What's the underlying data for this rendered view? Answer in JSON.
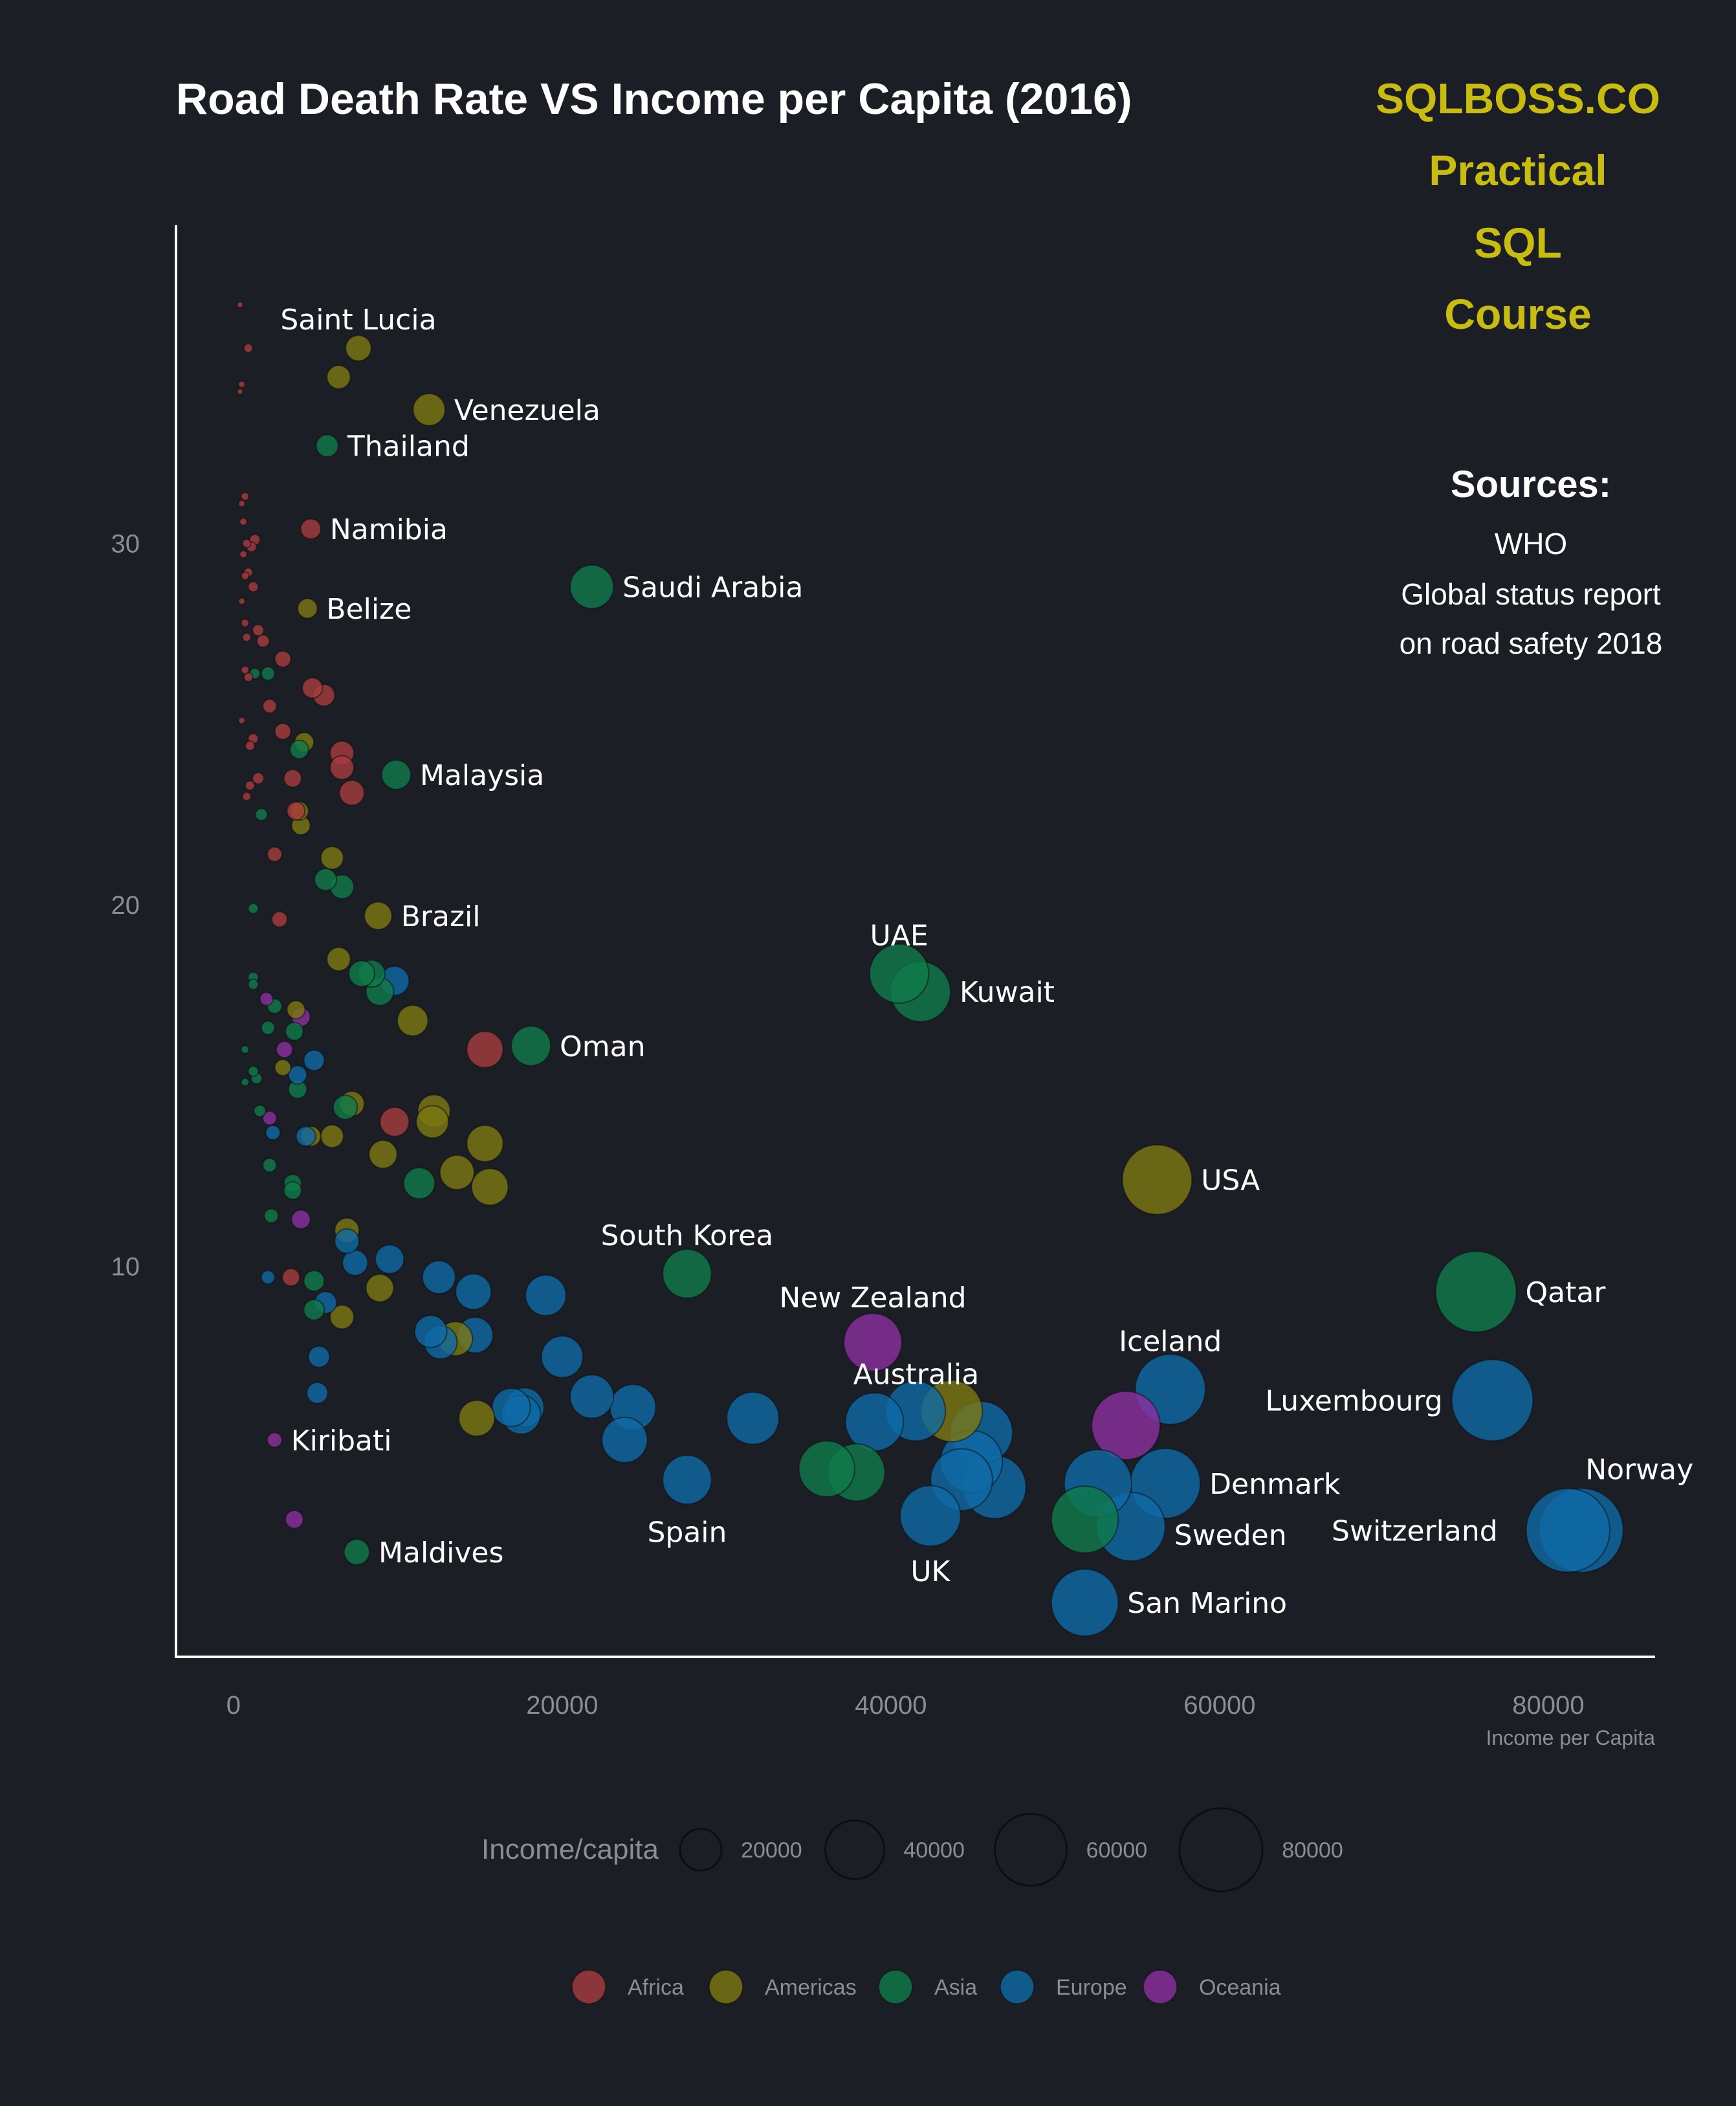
{
  "colors": {
    "background": "#1b1e25",
    "Africa": "#a83c3e",
    "Americas": "#7d7812",
    "Asia": "#0f7b4a",
    "Europe": "#0f6aa6",
    "Oceania": "#8c2fa0",
    "brand": "#c9bc10"
  },
  "header": {
    "brand_lines": [
      "SQLBOSS.CO",
      "Practical",
      "SQL",
      "Course"
    ],
    "sources_heading": "Sources:",
    "sources_lines": [
      "WHO",
      "Global status report",
      "on road safety 2018"
    ]
  },
  "chart_data": {
    "type": "scatter",
    "title": "Road Death Rate VS Income per Capita (2016)",
    "xlabel": "Income per Capita",
    "ylabel": "",
    "xlim": [
      -3500,
      86500
    ],
    "ylim": [
      -0.8,
      38.8
    ],
    "x_ticks": [
      0,
      20000,
      40000,
      60000,
      80000
    ],
    "y_ticks": [
      10,
      20,
      30
    ],
    "grid": false,
    "size_legend": {
      "title": "Income/capita",
      "values": [
        20000,
        40000,
        60000,
        80000
      ]
    },
    "color_legend": {
      "entries": [
        "Africa",
        "Americas",
        "Asia",
        "Europe",
        "Oceania"
      ],
      "placement": "bottom"
    },
    "points": [
      {
        "name": "Saint Lucia",
        "region": "Americas",
        "x": 7600,
        "y": 35.4,
        "label": true
      },
      {
        "name": "",
        "region": "Americas",
        "x": 6400,
        "y": 34.6
      },
      {
        "name": "Venezuela",
        "region": "Americas",
        "x": 11900,
        "y": 33.7,
        "label": true
      },
      {
        "name": "Thailand",
        "region": "Asia",
        "x": 5700,
        "y": 32.7,
        "label": true
      },
      {
        "name": "Namibia",
        "region": "Africa",
        "x": 4700,
        "y": 30.4,
        "label": true
      },
      {
        "name": "Saudi Arabia",
        "region": "Asia",
        "x": 21800,
        "y": 28.8,
        "label": true
      },
      {
        "name": "Belize",
        "region": "Americas",
        "x": 4500,
        "y": 28.2,
        "label": true
      },
      {
        "name": "Malaysia",
        "region": "Asia",
        "x": 9900,
        "y": 23.6,
        "label": true
      },
      {
        "name": "Brazil",
        "region": "Americas",
        "x": 8800,
        "y": 19.7,
        "label": true
      },
      {
        "name": "UAE",
        "region": "Asia",
        "x": 40500,
        "y": 18.1,
        "label": true
      },
      {
        "name": "Kuwait",
        "region": "Asia",
        "x": 41800,
        "y": 17.6,
        "label": true
      },
      {
        "name": "Oman",
        "region": "Asia",
        "x": 18100,
        "y": 16.1,
        "label": true
      },
      {
        "name": "USA",
        "region": "Americas",
        "x": 56200,
        "y": 12.4,
        "label": true
      },
      {
        "name": "South Korea",
        "region": "Asia",
        "x": 27600,
        "y": 9.8,
        "label": true
      },
      {
        "name": "Qatar",
        "region": "Asia",
        "x": 75600,
        "y": 9.3,
        "label": true
      },
      {
        "name": "New Zealand",
        "region": "Oceania",
        "x": 38900,
        "y": 7.9,
        "label": true
      },
      {
        "name": "Iceland",
        "region": "Europe",
        "x": 57000,
        "y": 6.6,
        "label": true
      },
      {
        "name": "Australia",
        "region": "Oceania",
        "x": 54300,
        "y": 5.6,
        "label": true
      },
      {
        "name": "Luxembourg",
        "region": "Europe",
        "x": 76600,
        "y": 6.3,
        "label": true
      },
      {
        "name": "Denmark",
        "region": "Europe",
        "x": 56700,
        "y": 4.0,
        "label": true
      },
      {
        "name": "Norway",
        "region": "Europe",
        "x": 82000,
        "y": 2.7,
        "label": true
      },
      {
        "name": "Switzerland",
        "region": "Europe",
        "x": 81200,
        "y": 2.7,
        "label": true
      },
      {
        "name": "Sweden",
        "region": "Europe",
        "x": 54600,
        "y": 2.8,
        "label": true
      },
      {
        "name": "Spain",
        "region": "Europe",
        "x": 27600,
        "y": 4.1,
        "label": true
      },
      {
        "name": "UK",
        "region": "Europe",
        "x": 42400,
        "y": 3.1,
        "label": true
      },
      {
        "name": "San Marino",
        "region": "Europe",
        "x": 51800,
        "y": 0.7,
        "label": true
      },
      {
        "name": "Kiribati",
        "region": "Oceania",
        "x": 2500,
        "y": 5.2,
        "label": true
      },
      {
        "name": "Maldives",
        "region": "Asia",
        "x": 7500,
        "y": 2.1,
        "label": true
      },
      {
        "name": "",
        "region": "Africa",
        "x": 400,
        "y": 36.6
      },
      {
        "name": "",
        "region": "Africa",
        "x": 900,
        "y": 35.4
      },
      {
        "name": "",
        "region": "Africa",
        "x": 500,
        "y": 34.4
      },
      {
        "name": "",
        "region": "Africa",
        "x": 400,
        "y": 34.2
      },
      {
        "name": "",
        "region": "Africa",
        "x": 700,
        "y": 31.3
      },
      {
        "name": "",
        "region": "Africa",
        "x": 500,
        "y": 31.1
      },
      {
        "name": "",
        "region": "Africa",
        "x": 600,
        "y": 30.6
      },
      {
        "name": "",
        "region": "Africa",
        "x": 1300,
        "y": 30.1
      },
      {
        "name": "",
        "region": "Africa",
        "x": 800,
        "y": 30.0
      },
      {
        "name": "",
        "region": "Africa",
        "x": 1100,
        "y": 29.9
      },
      {
        "name": "",
        "region": "Africa",
        "x": 600,
        "y": 29.7
      },
      {
        "name": "",
        "region": "Africa",
        "x": 900,
        "y": 29.2
      },
      {
        "name": "",
        "region": "Africa",
        "x": 700,
        "y": 29.1
      },
      {
        "name": "",
        "region": "Africa",
        "x": 1200,
        "y": 28.8
      },
      {
        "name": "",
        "region": "Africa",
        "x": 500,
        "y": 28.4
      },
      {
        "name": "",
        "region": "Africa",
        "x": 700,
        "y": 27.8
      },
      {
        "name": "",
        "region": "Africa",
        "x": 1500,
        "y": 27.6
      },
      {
        "name": "",
        "region": "Africa",
        "x": 800,
        "y": 27.4
      },
      {
        "name": "",
        "region": "Africa",
        "x": 1800,
        "y": 27.3
      },
      {
        "name": "",
        "region": "Africa",
        "x": 3000,
        "y": 26.8
      },
      {
        "name": "",
        "region": "Africa",
        "x": 700,
        "y": 26.5
      },
      {
        "name": "",
        "region": "Africa",
        "x": 900,
        "y": 26.3
      },
      {
        "name": "",
        "region": "Africa",
        "x": 4800,
        "y": 26.0
      },
      {
        "name": "",
        "region": "Africa",
        "x": 5500,
        "y": 25.8
      },
      {
        "name": "",
        "region": "Africa",
        "x": 2200,
        "y": 25.5
      },
      {
        "name": "",
        "region": "Africa",
        "x": 500,
        "y": 25.1
      },
      {
        "name": "",
        "region": "Africa",
        "x": 3000,
        "y": 24.8
      },
      {
        "name": "",
        "region": "Africa",
        "x": 1200,
        "y": 24.6
      },
      {
        "name": "",
        "region": "Africa",
        "x": 1000,
        "y": 24.4
      },
      {
        "name": "",
        "region": "Africa",
        "x": 6600,
        "y": 24.2
      },
      {
        "name": "",
        "region": "Africa",
        "x": 6600,
        "y": 23.8
      },
      {
        "name": "",
        "region": "Africa",
        "x": 3600,
        "y": 23.5
      },
      {
        "name": "",
        "region": "Africa",
        "x": 1500,
        "y": 23.5
      },
      {
        "name": "",
        "region": "Africa",
        "x": 1000,
        "y": 23.3
      },
      {
        "name": "",
        "region": "Africa",
        "x": 7200,
        "y": 23.1
      },
      {
        "name": "",
        "region": "Africa",
        "x": 800,
        "y": 23.0
      },
      {
        "name": "",
        "region": "Africa",
        "x": 3800,
        "y": 22.6
      },
      {
        "name": "",
        "region": "Africa",
        "x": 2500,
        "y": 21.4
      },
      {
        "name": "",
        "region": "Africa",
        "x": 2800,
        "y": 19.6
      },
      {
        "name": "",
        "region": "Africa",
        "x": 15300,
        "y": 16.0
      },
      {
        "name": "",
        "region": "Africa",
        "x": 9800,
        "y": 14.0
      },
      {
        "name": "",
        "region": "Africa",
        "x": 3500,
        "y": 9.7
      },
      {
        "name": "",
        "region": "Americas",
        "x": 4000,
        "y": 22.6
      },
      {
        "name": "",
        "region": "Americas",
        "x": 4100,
        "y": 22.2
      },
      {
        "name": "",
        "region": "Americas",
        "x": 4300,
        "y": 24.5
      },
      {
        "name": "",
        "region": "Americas",
        "x": 6000,
        "y": 21.3
      },
      {
        "name": "",
        "region": "Americas",
        "x": 6400,
        "y": 18.5
      },
      {
        "name": "",
        "region": "Americas",
        "x": 10900,
        "y": 16.8
      },
      {
        "name": "",
        "region": "Americas",
        "x": 3800,
        "y": 17.1
      },
      {
        "name": "",
        "region": "Americas",
        "x": 3000,
        "y": 15.5
      },
      {
        "name": "",
        "region": "Americas",
        "x": 7200,
        "y": 14.5
      },
      {
        "name": "",
        "region": "Americas",
        "x": 12200,
        "y": 14.3
      },
      {
        "name": "",
        "region": "Americas",
        "x": 12100,
        "y": 14.0
      },
      {
        "name": "",
        "region": "Americas",
        "x": 15300,
        "y": 13.4
      },
      {
        "name": "",
        "region": "Americas",
        "x": 6000,
        "y": 13.6
      },
      {
        "name": "",
        "region": "Americas",
        "x": 4700,
        "y": 13.6
      },
      {
        "name": "",
        "region": "Americas",
        "x": 9100,
        "y": 13.1
      },
      {
        "name": "",
        "region": "Americas",
        "x": 13600,
        "y": 12.6
      },
      {
        "name": "",
        "region": "Americas",
        "x": 15600,
        "y": 12.2
      },
      {
        "name": "",
        "region": "Americas",
        "x": 6900,
        "y": 11.0
      },
      {
        "name": "",
        "region": "Americas",
        "x": 8900,
        "y": 9.4
      },
      {
        "name": "",
        "region": "Americas",
        "x": 6600,
        "y": 8.6
      },
      {
        "name": "",
        "region": "Americas",
        "x": 13500,
        "y": 8.0
      },
      {
        "name": "",
        "region": "Americas",
        "x": 14800,
        "y": 5.8
      },
      {
        "name": "",
        "region": "Americas",
        "x": 43700,
        "y": 6.0
      },
      {
        "name": "",
        "region": "Asia",
        "x": 1300,
        "y": 26.4
      },
      {
        "name": "",
        "region": "Asia",
        "x": 2100,
        "y": 26.4
      },
      {
        "name": "",
        "region": "Asia",
        "x": 4000,
        "y": 24.3
      },
      {
        "name": "",
        "region": "Asia",
        "x": 1700,
        "y": 22.5
      },
      {
        "name": "",
        "region": "Asia",
        "x": 5600,
        "y": 20.7
      },
      {
        "name": "",
        "region": "Asia",
        "x": 6600,
        "y": 20.5
      },
      {
        "name": "",
        "region": "Asia",
        "x": 1200,
        "y": 19.9
      },
      {
        "name": "",
        "region": "Asia",
        "x": 7800,
        "y": 18.1
      },
      {
        "name": "",
        "region": "Asia",
        "x": 8400,
        "y": 18.1
      },
      {
        "name": "",
        "region": "Asia",
        "x": 8900,
        "y": 17.6
      },
      {
        "name": "",
        "region": "Asia",
        "x": 1200,
        "y": 18.0
      },
      {
        "name": "",
        "region": "Asia",
        "x": 1200,
        "y": 17.8
      },
      {
        "name": "",
        "region": "Asia",
        "x": 2500,
        "y": 17.2
      },
      {
        "name": "",
        "region": "Asia",
        "x": 2100,
        "y": 16.6
      },
      {
        "name": "",
        "region": "Asia",
        "x": 3700,
        "y": 16.5
      },
      {
        "name": "",
        "region": "Asia",
        "x": 700,
        "y": 16.0
      },
      {
        "name": "",
        "region": "Asia",
        "x": 1200,
        "y": 15.4
      },
      {
        "name": "",
        "region": "Asia",
        "x": 1400,
        "y": 15.2
      },
      {
        "name": "",
        "region": "Asia",
        "x": 700,
        "y": 15.1
      },
      {
        "name": "",
        "region": "Asia",
        "x": 3900,
        "y": 14.9
      },
      {
        "name": "",
        "region": "Asia",
        "x": 6800,
        "y": 14.4
      },
      {
        "name": "",
        "region": "Asia",
        "x": 1600,
        "y": 14.3
      },
      {
        "name": "",
        "region": "Asia",
        "x": 2200,
        "y": 12.8
      },
      {
        "name": "",
        "region": "Asia",
        "x": 3600,
        "y": 12.3
      },
      {
        "name": "",
        "region": "Asia",
        "x": 3600,
        "y": 12.1
      },
      {
        "name": "",
        "region": "Asia",
        "x": 11300,
        "y": 12.3
      },
      {
        "name": "",
        "region": "Asia",
        "x": 2300,
        "y": 11.4
      },
      {
        "name": "",
        "region": "Asia",
        "x": 4900,
        "y": 9.6
      },
      {
        "name": "",
        "region": "Asia",
        "x": 4900,
        "y": 8.8
      },
      {
        "name": "",
        "region": "Asia",
        "x": 36100,
        "y": 4.4
      },
      {
        "name": "",
        "region": "Asia",
        "x": 37900,
        "y": 4.3
      },
      {
        "name": "",
        "region": "Asia",
        "x": 51800,
        "y": 3.0
      },
      {
        "name": "",
        "region": "Europe",
        "x": 9800,
        "y": 17.9
      },
      {
        "name": "",
        "region": "Europe",
        "x": 4900,
        "y": 15.7
      },
      {
        "name": "",
        "region": "Europe",
        "x": 3900,
        "y": 15.3
      },
      {
        "name": "",
        "region": "Europe",
        "x": 2400,
        "y": 13.7
      },
      {
        "name": "",
        "region": "Europe",
        "x": 4400,
        "y": 13.6
      },
      {
        "name": "",
        "region": "Europe",
        "x": 6900,
        "y": 10.7
      },
      {
        "name": "",
        "region": "Europe",
        "x": 7400,
        "y": 10.1
      },
      {
        "name": "",
        "region": "Europe",
        "x": 9500,
        "y": 10.2
      },
      {
        "name": "",
        "region": "Europe",
        "x": 12500,
        "y": 9.7
      },
      {
        "name": "",
        "region": "Europe",
        "x": 14600,
        "y": 9.3
      },
      {
        "name": "",
        "region": "Europe",
        "x": 19000,
        "y": 9.2
      },
      {
        "name": "",
        "region": "Europe",
        "x": 2100,
        "y": 9.7
      },
      {
        "name": "",
        "region": "Europe",
        "x": 5600,
        "y": 9.0
      },
      {
        "name": "",
        "region": "Europe",
        "x": 12000,
        "y": 8.2
      },
      {
        "name": "",
        "region": "Europe",
        "x": 12600,
        "y": 7.9
      },
      {
        "name": "",
        "region": "Europe",
        "x": 14700,
        "y": 8.1
      },
      {
        "name": "",
        "region": "Europe",
        "x": 20000,
        "y": 7.5
      },
      {
        "name": "",
        "region": "Europe",
        "x": 5200,
        "y": 7.5
      },
      {
        "name": "",
        "region": "Europe",
        "x": 5100,
        "y": 6.5
      },
      {
        "name": "",
        "region": "Europe",
        "x": 16900,
        "y": 6.1
      },
      {
        "name": "",
        "region": "Europe",
        "x": 17500,
        "y": 5.9
      },
      {
        "name": "",
        "region": "Europe",
        "x": 17700,
        "y": 6.1
      },
      {
        "name": "",
        "region": "Europe",
        "x": 21800,
        "y": 6.4
      },
      {
        "name": "",
        "region": "Europe",
        "x": 24300,
        "y": 6.1
      },
      {
        "name": "",
        "region": "Europe",
        "x": 23800,
        "y": 5.2
      },
      {
        "name": "",
        "region": "Europe",
        "x": 31600,
        "y": 5.8
      },
      {
        "name": "",
        "region": "Europe",
        "x": 39000,
        "y": 5.7
      },
      {
        "name": "",
        "region": "Europe",
        "x": 41500,
        "y": 6.0
      },
      {
        "name": "",
        "region": "Europe",
        "x": 45500,
        "y": 5.4
      },
      {
        "name": "",
        "region": "Europe",
        "x": 44900,
        "y": 4.6
      },
      {
        "name": "",
        "region": "Europe",
        "x": 44300,
        "y": 4.1
      },
      {
        "name": "",
        "region": "Europe",
        "x": 46300,
        "y": 3.9
      },
      {
        "name": "",
        "region": "Europe",
        "x": 52600,
        "y": 4.0
      },
      {
        "name": "",
        "region": "Oceania",
        "x": 2000,
        "y": 17.4
      },
      {
        "name": "",
        "region": "Oceania",
        "x": 4100,
        "y": 16.9
      },
      {
        "name": "",
        "region": "Oceania",
        "x": 3100,
        "y": 16.0
      },
      {
        "name": "",
        "region": "Oceania",
        "x": 2200,
        "y": 14.1
      },
      {
        "name": "",
        "region": "Oceania",
        "x": 4100,
        "y": 11.3
      },
      {
        "name": "",
        "region": "Oceania",
        "x": 3700,
        "y": 3.0
      }
    ]
  }
}
